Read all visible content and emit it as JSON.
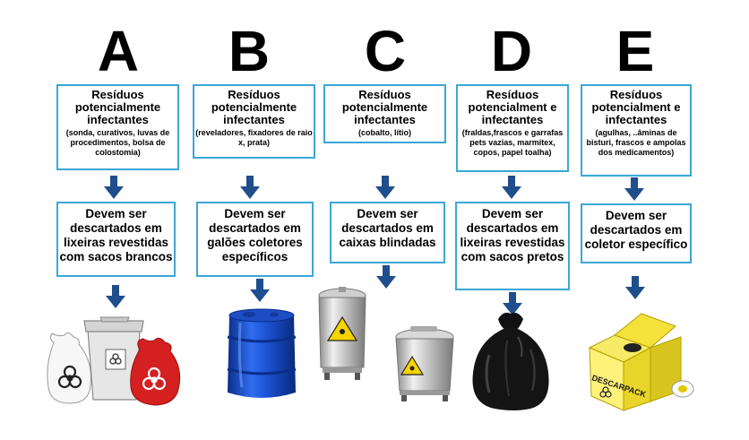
{
  "columns": [
    {
      "letter": "A",
      "top_title": "Resíduos potencialmente infectantes",
      "top_detail": "(sonda, curativos, luvas de procedimentos, bolsa de colostomia)",
      "bottom": "Devem ser descartados em lixeiras revestidas com sacos brancos"
    },
    {
      "letter": "B",
      "top_title": "Resíduos potencialmente infectantes",
      "top_detail": "(reveladores, fixadores de raio x, prata)",
      "bottom": "Devem ser descartados em galões coletores específicos"
    },
    {
      "letter": "C",
      "top_title": "Resíduos potencialmente infectantes",
      "top_detail": "(cobalto, lítio)",
      "bottom": "Devem ser descartados em caixas blindadas"
    },
    {
      "letter": "D",
      "top_title": "Resíduos potencialment e infectantes",
      "top_detail": "(fraldas,frascos e garrafas pets vazias, marmitex, copos, papel toalha)",
      "bottom": "Devem ser descartados em lixeiras revestidas com sacos pretos"
    },
    {
      "letter": "E",
      "top_title": "Resíduos potencialment e infectantes",
      "top_detail": "(agulhas, ..âminas de bisturi, frascos e ampolas dos medicamentos)",
      "bottom": "Devem ser descartados em coletor específico"
    }
  ],
  "images": {
    "a": "white-bin-with-biohazard-bags",
    "b": "blue-drum",
    "c": "radioactive-steel-bins",
    "d": "black-garbage-bag",
    "e": "sharps-container",
    "e_box_label": "DESCARPACK"
  },
  "colors": {
    "box_border": "#3aa7d7",
    "arrow": "#1f4e8c"
  }
}
